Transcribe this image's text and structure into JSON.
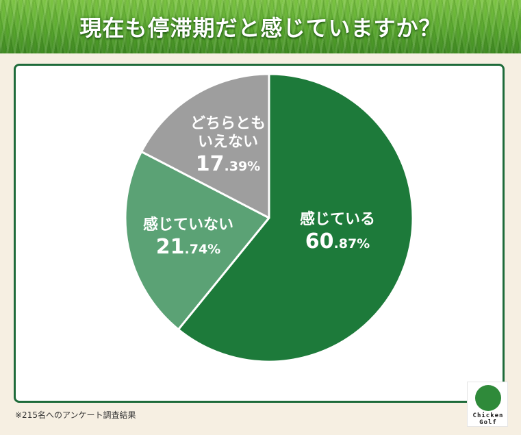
{
  "header": {
    "title": "現在も停滞期だと感じていますか？"
  },
  "chart_data": {
    "type": "pie",
    "title": "現在も停滞期だと感じていますか？",
    "slices": [
      {
        "label": "感じている",
        "value": 60.87,
        "int": "60",
        "dec": ".87%",
        "color": "#1d7a3a"
      },
      {
        "label": "感じていない",
        "value": 21.74,
        "int": "21",
        "dec": ".74%",
        "color": "#5ba275"
      },
      {
        "label": "どちらとも\nいえない",
        "label_line1": "どちらとも",
        "label_line2": "いえない",
        "value": 17.39,
        "int": "17",
        "dec": ".39%",
        "color": "#9e9e9e"
      }
    ],
    "start_angle_deg": 0,
    "direction": "clockwise"
  },
  "footnote": "※215名へのアンケート調査結果",
  "logo": {
    "line1": "Chicken",
    "line2": "Golf",
    "icon": "chicken-golf-logo-icon"
  }
}
